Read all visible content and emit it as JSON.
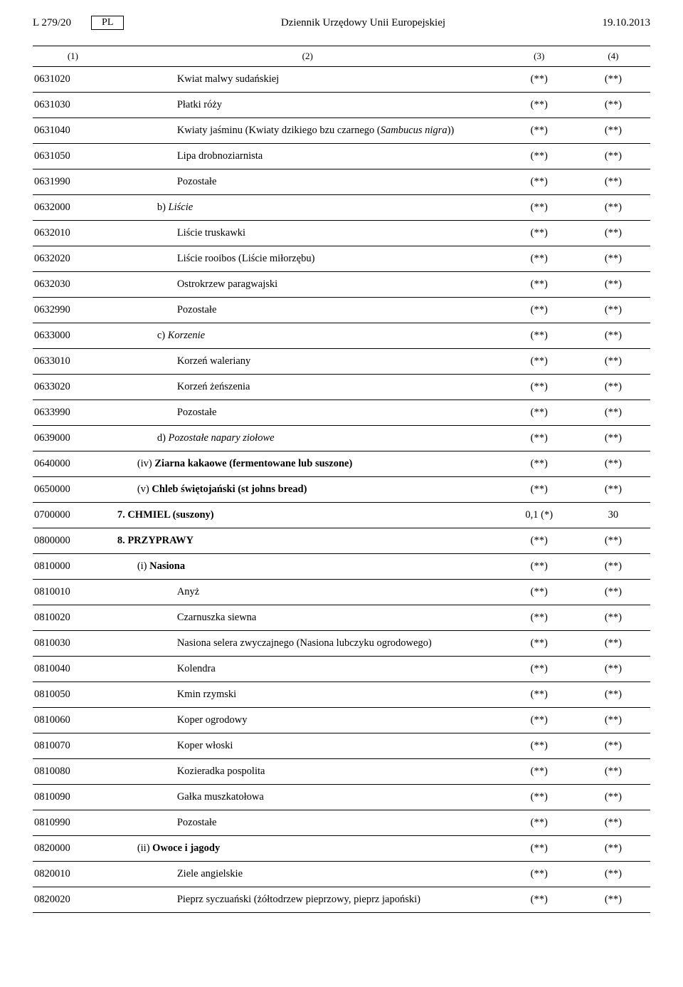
{
  "header": {
    "left": "L 279/20",
    "lang": "PL",
    "center": "Dziennik Urzędowy Unii Europejskiej",
    "right": "19.10.2013"
  },
  "columns": [
    "(1)",
    "(2)",
    "(3)",
    "(4)"
  ],
  "rows": [
    {
      "code": "0631020",
      "desc": "Kwiat malwy sudańskiej",
      "indent": 3,
      "v3": "(**)",
      "v4": "(**)"
    },
    {
      "code": "0631030",
      "desc": "Płatki róży",
      "indent": 3,
      "v3": "(**)",
      "v4": "(**)"
    },
    {
      "code": "0631040",
      "desc": "Kwiaty jaśminu (Kwiaty dzikiego bzu czarnego (Sambucus nigra))",
      "indent": 3,
      "italicTail": true,
      "v3": "(**)",
      "v4": "(**)"
    },
    {
      "code": "0631050",
      "desc": "Lipa drobnoziarnista",
      "indent": 3,
      "v3": "(**)",
      "v4": "(**)"
    },
    {
      "code": "0631990",
      "desc": "Pozostałe",
      "indent": 3,
      "v3": "(**)",
      "v4": "(**)"
    },
    {
      "code": "0632000",
      "desc": "b)  Liście",
      "indent": 2,
      "italic": true,
      "v3": "(**)",
      "v4": "(**)"
    },
    {
      "code": "0632010",
      "desc": "Liście truskawki",
      "indent": 3,
      "v3": "(**)",
      "v4": "(**)"
    },
    {
      "code": "0632020",
      "desc": "Liście rooibos (Liście miłorzębu)",
      "indent": 3,
      "v3": "(**)",
      "v4": "(**)"
    },
    {
      "code": "0632030",
      "desc": "Ostrokrzew paragwajski",
      "indent": 3,
      "v3": "(**)",
      "v4": "(**)"
    },
    {
      "code": "0632990",
      "desc": "Pozostałe",
      "indent": 3,
      "v3": "(**)",
      "v4": "(**)"
    },
    {
      "code": "0633000",
      "desc": "c)  Korzenie",
      "indent": 2,
      "italic": true,
      "v3": "(**)",
      "v4": "(**)"
    },
    {
      "code": "0633010",
      "desc": "Korzeń waleriany",
      "indent": 3,
      "v3": "(**)",
      "v4": "(**)"
    },
    {
      "code": "0633020",
      "desc": "Korzeń żeńszenia",
      "indent": 3,
      "v3": "(**)",
      "v4": "(**)"
    },
    {
      "code": "0633990",
      "desc": "Pozostałe",
      "indent": 3,
      "v3": "(**)",
      "v4": "(**)"
    },
    {
      "code": "0639000",
      "desc": "d)  Pozostałe napary ziołowe",
      "indent": 2,
      "italic": true,
      "v3": "(**)",
      "v4": "(**)"
    },
    {
      "code": "0640000",
      "desc": "(iv) Ziarna kakaowe (fermentowane lub suszone)",
      "indent": 1,
      "boldAfterRoman": true,
      "v3": "(**)",
      "v4": "(**)"
    },
    {
      "code": "0650000",
      "desc": "(v) Chleb świętojański (st johns bread)",
      "indent": 1,
      "boldAfterRoman": true,
      "v3": "(**)",
      "v4": "(**)"
    },
    {
      "code": "0700000",
      "desc": "7. CHMIEL (suszony)",
      "indent": 0,
      "boldAll": true,
      "v3": "0,1 (*)",
      "v4": "30"
    },
    {
      "code": "0800000",
      "desc": "8. PRZYPRAWY",
      "indent": 0,
      "boldAll": true,
      "v3": "(**)",
      "v4": "(**)"
    },
    {
      "code": "0810000",
      "desc": "(i) Nasiona",
      "indent": 1,
      "boldAfterRoman": true,
      "v3": "(**)",
      "v4": "(**)"
    },
    {
      "code": "0810010",
      "desc": "Anyż",
      "indent": 3,
      "v3": "(**)",
      "v4": "(**)"
    },
    {
      "code": "0810020",
      "desc": "Czarnuszka siewna",
      "indent": 3,
      "v3": "(**)",
      "v4": "(**)"
    },
    {
      "code": "0810030",
      "desc": "Nasiona selera zwyczajnego (Nasiona lubczyku ogrodowego)",
      "indent": 3,
      "v3": "(**)",
      "v4": "(**)"
    },
    {
      "code": "0810040",
      "desc": "Kolendra",
      "indent": 3,
      "v3": "(**)",
      "v4": "(**)"
    },
    {
      "code": "0810050",
      "desc": "Kmin rzymski",
      "indent": 3,
      "v3": "(**)",
      "v4": "(**)"
    },
    {
      "code": "0810060",
      "desc": "Koper ogrodowy",
      "indent": 3,
      "v3": "(**)",
      "v4": "(**)"
    },
    {
      "code": "0810070",
      "desc": "Koper włoski",
      "indent": 3,
      "v3": "(**)",
      "v4": "(**)"
    },
    {
      "code": "0810080",
      "desc": "Kozieradka pospolita",
      "indent": 3,
      "v3": "(**)",
      "v4": "(**)"
    },
    {
      "code": "0810090",
      "desc": "Gałka muszkatołowa",
      "indent": 3,
      "v3": "(**)",
      "v4": "(**)"
    },
    {
      "code": "0810990",
      "desc": "Pozostałe",
      "indent": 3,
      "v3": "(**)",
      "v4": "(**)"
    },
    {
      "code": "0820000",
      "desc": "(ii) Owoce i jagody",
      "indent": 1,
      "boldAfterRoman": true,
      "v3": "(**)",
      "v4": "(**)"
    },
    {
      "code": "0820010",
      "desc": "Ziele angielskie",
      "indent": 3,
      "v3": "(**)",
      "v4": "(**)"
    },
    {
      "code": "0820020",
      "desc": "Pieprz syczuański (żółtodrzew pieprzowy, pieprz japoński)",
      "indent": 3,
      "v3": "(**)",
      "v4": "(**)"
    }
  ]
}
